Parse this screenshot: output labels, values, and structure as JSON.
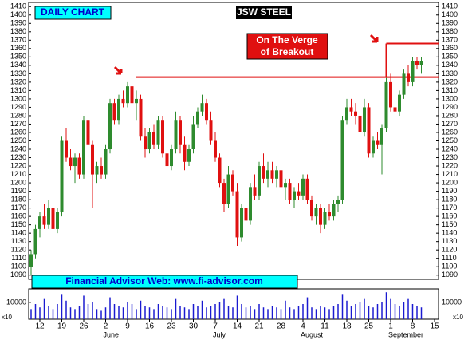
{
  "chart_data": {
    "type": "candlestick",
    "title": "JSW STEEL",
    "subtitle": "DAILY CHART",
    "annotations": [
      "On The Verge",
      "of Breakout"
    ],
    "footer": "Financial Advisor Web: www.fi-advisor.com",
    "volume_unit": "x10",
    "categories": [
      null,
      null,
      "12",
      null,
      null,
      null,
      null,
      "19",
      null,
      null,
      null,
      null,
      "26",
      null,
      null,
      null,
      null,
      "2",
      null,
      null,
      null,
      null,
      "9",
      null,
      null,
      null,
      null,
      "16",
      null,
      null,
      null,
      null,
      "23",
      null,
      null,
      null,
      null,
      "30",
      null,
      null,
      null,
      null,
      "7",
      null,
      null,
      null,
      null,
      "14",
      null,
      null,
      null,
      null,
      "21",
      null,
      null,
      null,
      null,
      "28",
      null,
      null,
      null,
      null,
      "4",
      null,
      null,
      null,
      null,
      "11",
      null,
      null,
      null,
      null,
      "18",
      null,
      null,
      null,
      null,
      "25",
      null,
      null,
      null,
      null,
      "1",
      null,
      null,
      null,
      null,
      "8",
      null,
      null,
      null,
      null,
      "15"
    ],
    "months": [
      {
        "label": "June",
        "index": 17
      },
      {
        "label": "July",
        "index": 42
      },
      {
        "label": "August",
        "index": 62
      },
      {
        "label": "September",
        "index": 82
      }
    ],
    "open": [
      1100,
      1115,
      1145,
      1160,
      1150,
      1170,
      1145,
      1165,
      1250,
      1230,
      1220,
      1230,
      1210,
      1275,
      1245,
      1210,
      1220,
      1210,
      1240,
      1295,
      1275,
      1300,
      1295,
      1315,
      1295,
      1300,
      1255,
      1240,
      1260,
      1245,
      1275,
      1235,
      1220,
      1240,
      1275,
      1245,
      1225,
      1240,
      1270,
      1285,
      1295,
      1275,
      1250,
      1230,
      1200,
      1175,
      1210,
      1190,
      1135,
      1170,
      1155,
      1195,
      1185,
      1220,
      1205,
      1215,
      1205,
      1215,
      1195,
      1200,
      1180,
      1190,
      1185,
      1205,
      1180,
      1160,
      1170,
      1150,
      1165,
      1160,
      1175,
      1180,
      1275,
      1290,
      1285,
      1280,
      1260,
      1290,
      1235,
      1250,
      1245,
      1265,
      1320,
      1290,
      1285,
      1305,
      1330,
      1320,
      1345,
      1340,
      null,
      null,
      null
    ],
    "high": [
      1120,
      1150,
      1165,
      1175,
      1180,
      1175,
      1170,
      1255,
      1265,
      1240,
      1235,
      1235,
      1280,
      1290,
      1250,
      1225,
      1230,
      1245,
      1300,
      1300,
      1305,
      1310,
      1320,
      1325,
      1310,
      1305,
      1265,
      1265,
      1270,
      1280,
      1280,
      1250,
      1245,
      1285,
      1280,
      1255,
      1245,
      1280,
      1290,
      1305,
      1300,
      1285,
      1260,
      1235,
      1205,
      1220,
      1215,
      1200,
      1175,
      1180,
      1200,
      1210,
      1225,
      1235,
      1225,
      1225,
      1220,
      1220,
      1205,
      1205,
      1195,
      1200,
      1210,
      1210,
      1185,
      1175,
      1175,
      1170,
      1175,
      1180,
      1185,
      1280,
      1300,
      1300,
      1295,
      1290,
      1300,
      1295,
      1255,
      1260,
      1270,
      1325,
      1330,
      1300,
      1310,
      1335,
      1340,
      1350,
      1350,
      1350,
      null,
      null,
      null
    ],
    "low": [
      1090,
      1110,
      1135,
      1145,
      1145,
      1140,
      1140,
      1160,
      1225,
      1215,
      1200,
      1205,
      1205,
      1235,
      1170,
      1200,
      1205,
      1205,
      1235,
      1270,
      1270,
      1290,
      1290,
      1290,
      1275,
      1250,
      1230,
      1235,
      1240,
      1240,
      1230,
      1215,
      1215,
      1235,
      1235,
      1215,
      1220,
      1235,
      1265,
      1280,
      1270,
      1245,
      1225,
      1195,
      1165,
      1170,
      1185,
      1125,
      1130,
      1150,
      1150,
      1180,
      1180,
      1200,
      1195,
      1200,
      1195,
      1190,
      1180,
      1175,
      1170,
      1180,
      1180,
      1175,
      1155,
      1150,
      1140,
      1145,
      1155,
      1155,
      1165,
      1175,
      1270,
      1280,
      1270,
      1255,
      1255,
      1230,
      1230,
      1240,
      1210,
      1260,
      1285,
      1270,
      1280,
      1300,
      1315,
      1315,
      1335,
      1330,
      null,
      null,
      null
    ],
    "close": [
      1115,
      1145,
      1160,
      1150,
      1170,
      1145,
      1165,
      1250,
      1230,
      1220,
      1230,
      1210,
      1275,
      1245,
      1210,
      1220,
      1210,
      1240,
      1295,
      1275,
      1300,
      1295,
      1315,
      1295,
      1300,
      1255,
      1240,
      1260,
      1245,
      1275,
      1235,
      1220,
      1240,
      1275,
      1245,
      1225,
      1240,
      1270,
      1285,
      1295,
      1275,
      1250,
      1230,
      1200,
      1175,
      1210,
      1190,
      1135,
      1170,
      1155,
      1195,
      1185,
      1220,
      1205,
      1215,
      1205,
      1215,
      1195,
      1200,
      1180,
      1190,
      1185,
      1205,
      1180,
      1160,
      1170,
      1150,
      1165,
      1160,
      1175,
      1180,
      1275,
      1290,
      1285,
      1280,
      1260,
      1290,
      1235,
      1250,
      1245,
      1265,
      1320,
      1290,
      1285,
      1305,
      1330,
      1320,
      1345,
      1340,
      1345,
      null,
      null,
      null
    ],
    "volume": [
      6000,
      9000,
      7000,
      12000,
      8000,
      6000,
      9000,
      15000,
      11000,
      7000,
      6000,
      8000,
      14000,
      9000,
      10000,
      6000,
      5000,
      7000,
      13000,
      9000,
      8000,
      7000,
      10000,
      9000,
      6000,
      11000,
      8000,
      7000,
      6000,
      9000,
      8000,
      7000,
      6000,
      12000,
      8000,
      7000,
      6000,
      9000,
      8000,
      11000,
      7000,
      8000,
      9000,
      10000,
      12000,
      8000,
      7000,
      14000,
      9000,
      7000,
      8000,
      6000,
      9000,
      7000,
      6000,
      8000,
      7000,
      6000,
      11000,
      7000,
      6000,
      8000,
      9000,
      13000,
      7000,
      6000,
      8000,
      7000,
      6000,
      8000,
      9000,
      15000,
      11000,
      8000,
      9000,
      10000,
      12000,
      8000,
      7000,
      9000,
      10000,
      16000,
      12000,
      9000,
      8000,
      10000,
      12000,
      9000,
      8000,
      7000,
      null,
      null,
      null
    ],
    "up_color": "#2e8b2e",
    "down_color": "#e01010",
    "volume_color": "#1a1ad0",
    "level_color": "#e01010",
    "levels": [
      {
        "value": 1326,
        "from": 24
      },
      {
        "value": 1366,
        "from": 81
      }
    ],
    "ylim": [
      1085,
      1415
    ],
    "yticks": [
      1090,
      1100,
      1110,
      1120,
      1130,
      1140,
      1150,
      1160,
      1170,
      1180,
      1190,
      1200,
      1210,
      1220,
      1230,
      1240,
      1250,
      1260,
      1270,
      1280,
      1290,
      1300,
      1310,
      1320,
      1330,
      1340,
      1350,
      1360,
      1370,
      1380,
      1390,
      1400,
      1410
    ],
    "volume_ylim": [
      0,
      18000
    ],
    "volume_yticks": [
      10000
    ]
  }
}
